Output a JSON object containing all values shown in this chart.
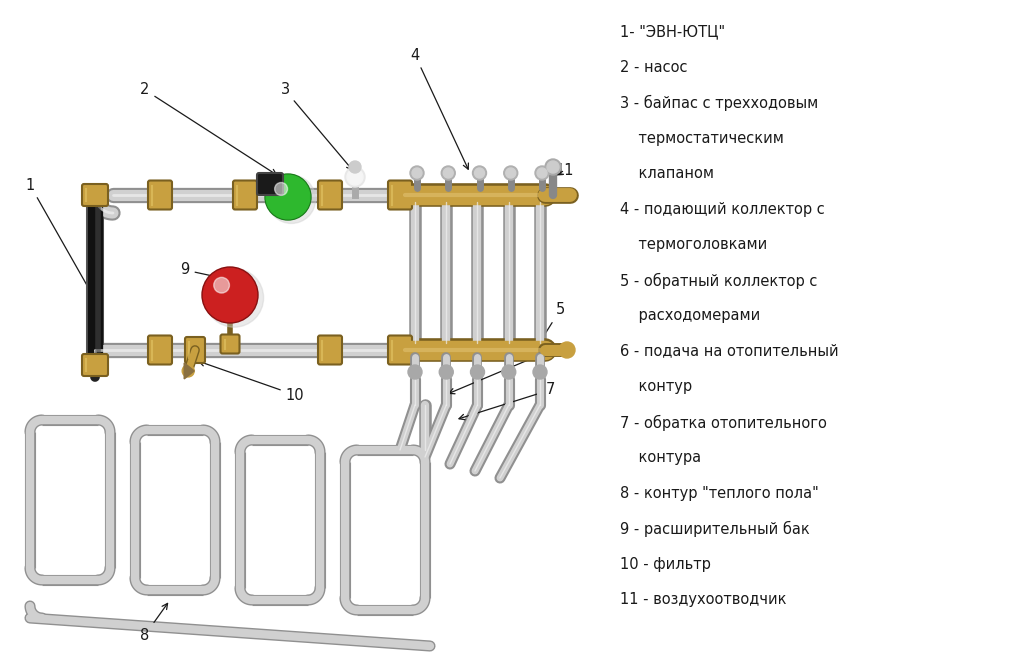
{
  "bg_color": "#ffffff",
  "pipe_color": "#d0d0d0",
  "pipe_edge": "#909090",
  "brass_color": "#c8a040",
  "brass_edge": "#7a6020",
  "green_color": "#2eb82e",
  "green_dark": "#1a7a1a",
  "red_color": "#cc2020",
  "red_dark": "#881010",
  "black_color": "#1a1a1a",
  "ann_color": "#1a1a1a",
  "legend_lines": [
    "1- \"ЭВН-ЮТЦ\"",
    "2 - насос",
    "3 - байпас с трехходовым",
    "    термостатическим",
    "    клапаном",
    "4 - подающий коллектор с",
    "    термоголовками",
    "5 - обратный коллектор с",
    "    расходомерами",
    "6 - подача на отопительный",
    "    контур",
    "7 - обратка отопительного",
    "    контура",
    "8 - контур \"теплого пола\"",
    "9 - расширительный бак",
    "10 - фильтр",
    "11 - воздухоотводчик"
  ]
}
